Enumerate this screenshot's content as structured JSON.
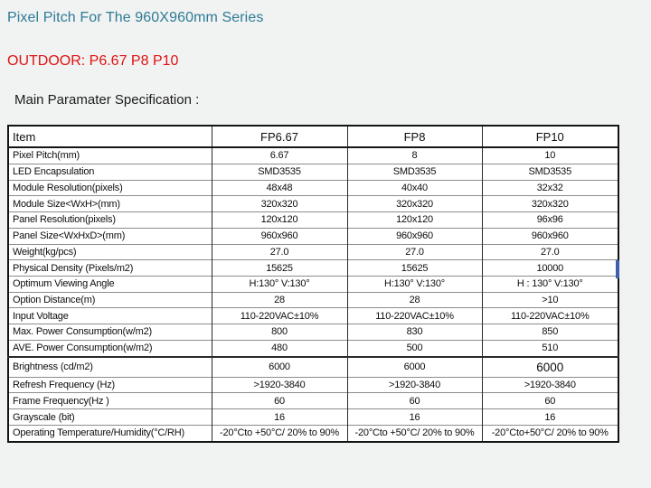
{
  "page": {
    "background_color": "#f1f2f2"
  },
  "title": {
    "text": "Pixel Pitch For The 960X960mm Series",
    "color": "#2e7b96"
  },
  "subtitle": {
    "text": "OUTDOOR: P6.67 P8 P10",
    "color": "#e01212"
  },
  "section_label": "Main Paramater Specification :",
  "table": {
    "columns": [
      "Item",
      "FP6.67",
      "FP8",
      "FP10"
    ],
    "rows": [
      {
        "label": "Pixel Pitch(mm)",
        "values": [
          "6.67",
          "8",
          "10"
        ]
      },
      {
        "label": "LED Encapsulation",
        "values": [
          "SMD3535",
          "SMD3535",
          "SMD3535"
        ]
      },
      {
        "label": "Module Resolution(pixels)",
        "values": [
          "48x48",
          "40x40",
          "32x32"
        ]
      },
      {
        "label": "Module Size<WxH>(mm)",
        "values": [
          "320x320",
          "320x320",
          "320x320"
        ]
      },
      {
        "label": "Panel Resolution(pixels)",
        "values": [
          "120x120",
          "120x120",
          "96x96"
        ]
      },
      {
        "label": "Panel Size<WxHxD>(mm)",
        "values": [
          "960x960",
          "960x960",
          "960x960"
        ]
      },
      {
        "label": "Weight(kg/pcs)",
        "values": [
          "27.0",
          "27.0",
          "27.0"
        ]
      },
      {
        "label": "Physical Density (Pixels/m2)",
        "values": [
          "15625",
          "15625",
          "10000"
        ]
      },
      {
        "label": "Optimum Viewing Angle",
        "values": [
          "H:130° V:130°",
          "H:130° V:130°",
          "H : 130° V:130°"
        ]
      },
      {
        "label": "Option Distance(m)",
        "values": [
          "28",
          "28",
          ">10"
        ]
      },
      {
        "label": "Input Voltage",
        "values": [
          "110-220VAC±10%",
          "110-220VAC±10%",
          "110-220VAC±10%"
        ]
      },
      {
        "label": "Max. Power Consumption(w/m2)",
        "values": [
          "800",
          "830",
          "850"
        ]
      },
      {
        "label": "AVE. Power Consumption(w/m2)",
        "values": [
          "480",
          "500",
          "510"
        ]
      },
      {
        "label": "Brightness (cd/m2)",
        "values": [
          "6000",
          "6000",
          "6000"
        ]
      },
      {
        "label": "Refresh Frequency (Hz)",
        "values": [
          ">1920-3840",
          ">1920-3840",
          ">1920-3840"
        ]
      },
      {
        "label": "Frame Frequency(Hz )",
        "values": [
          "60",
          "60",
          "60"
        ]
      },
      {
        "label": "Grayscale (bit)",
        "values": [
          "16",
          "16",
          "16"
        ]
      },
      {
        "label": "Operating Temperature/Humidity(°C/RH)",
        "values": [
          "-20°Cto +50°C/ 20% to 90%",
          "-20°Cto +50°C/ 20% to 90%",
          "-20°Cto+50°C/ 20% to 90%"
        ]
      }
    ],
    "highlight": {
      "row_label": "Physical Density (Pixels/m2)",
      "edge": "right",
      "color": "#3d5fae"
    }
  }
}
